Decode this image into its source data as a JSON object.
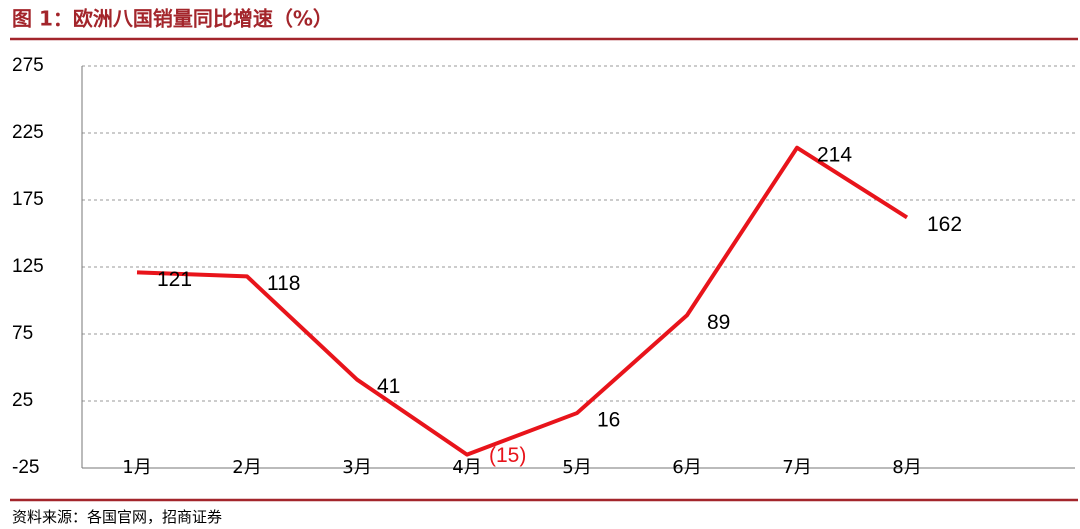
{
  "chart_data": {
    "type": "line",
    "title": "图 1：欧洲八国销量同比增速（%）",
    "source": "资料来源：各国官网，招商证券",
    "categories": [
      "1月",
      "2月",
      "3月",
      "4月",
      "5月",
      "6月",
      "7月",
      "8月"
    ],
    "series": [
      {
        "name": "销量同比增速",
        "color": "#e8141b",
        "values": [
          121,
          118,
          41,
          -15,
          16,
          89,
          214,
          162
        ],
        "value_labels": [
          "121",
          "118",
          "41",
          "(15)",
          "16",
          "89",
          "214",
          "162"
        ]
      }
    ],
    "ylim": [
      -25,
      275
    ],
    "yticks": [
      -25,
      25,
      75,
      125,
      175,
      225,
      275
    ],
    "grid": true
  }
}
